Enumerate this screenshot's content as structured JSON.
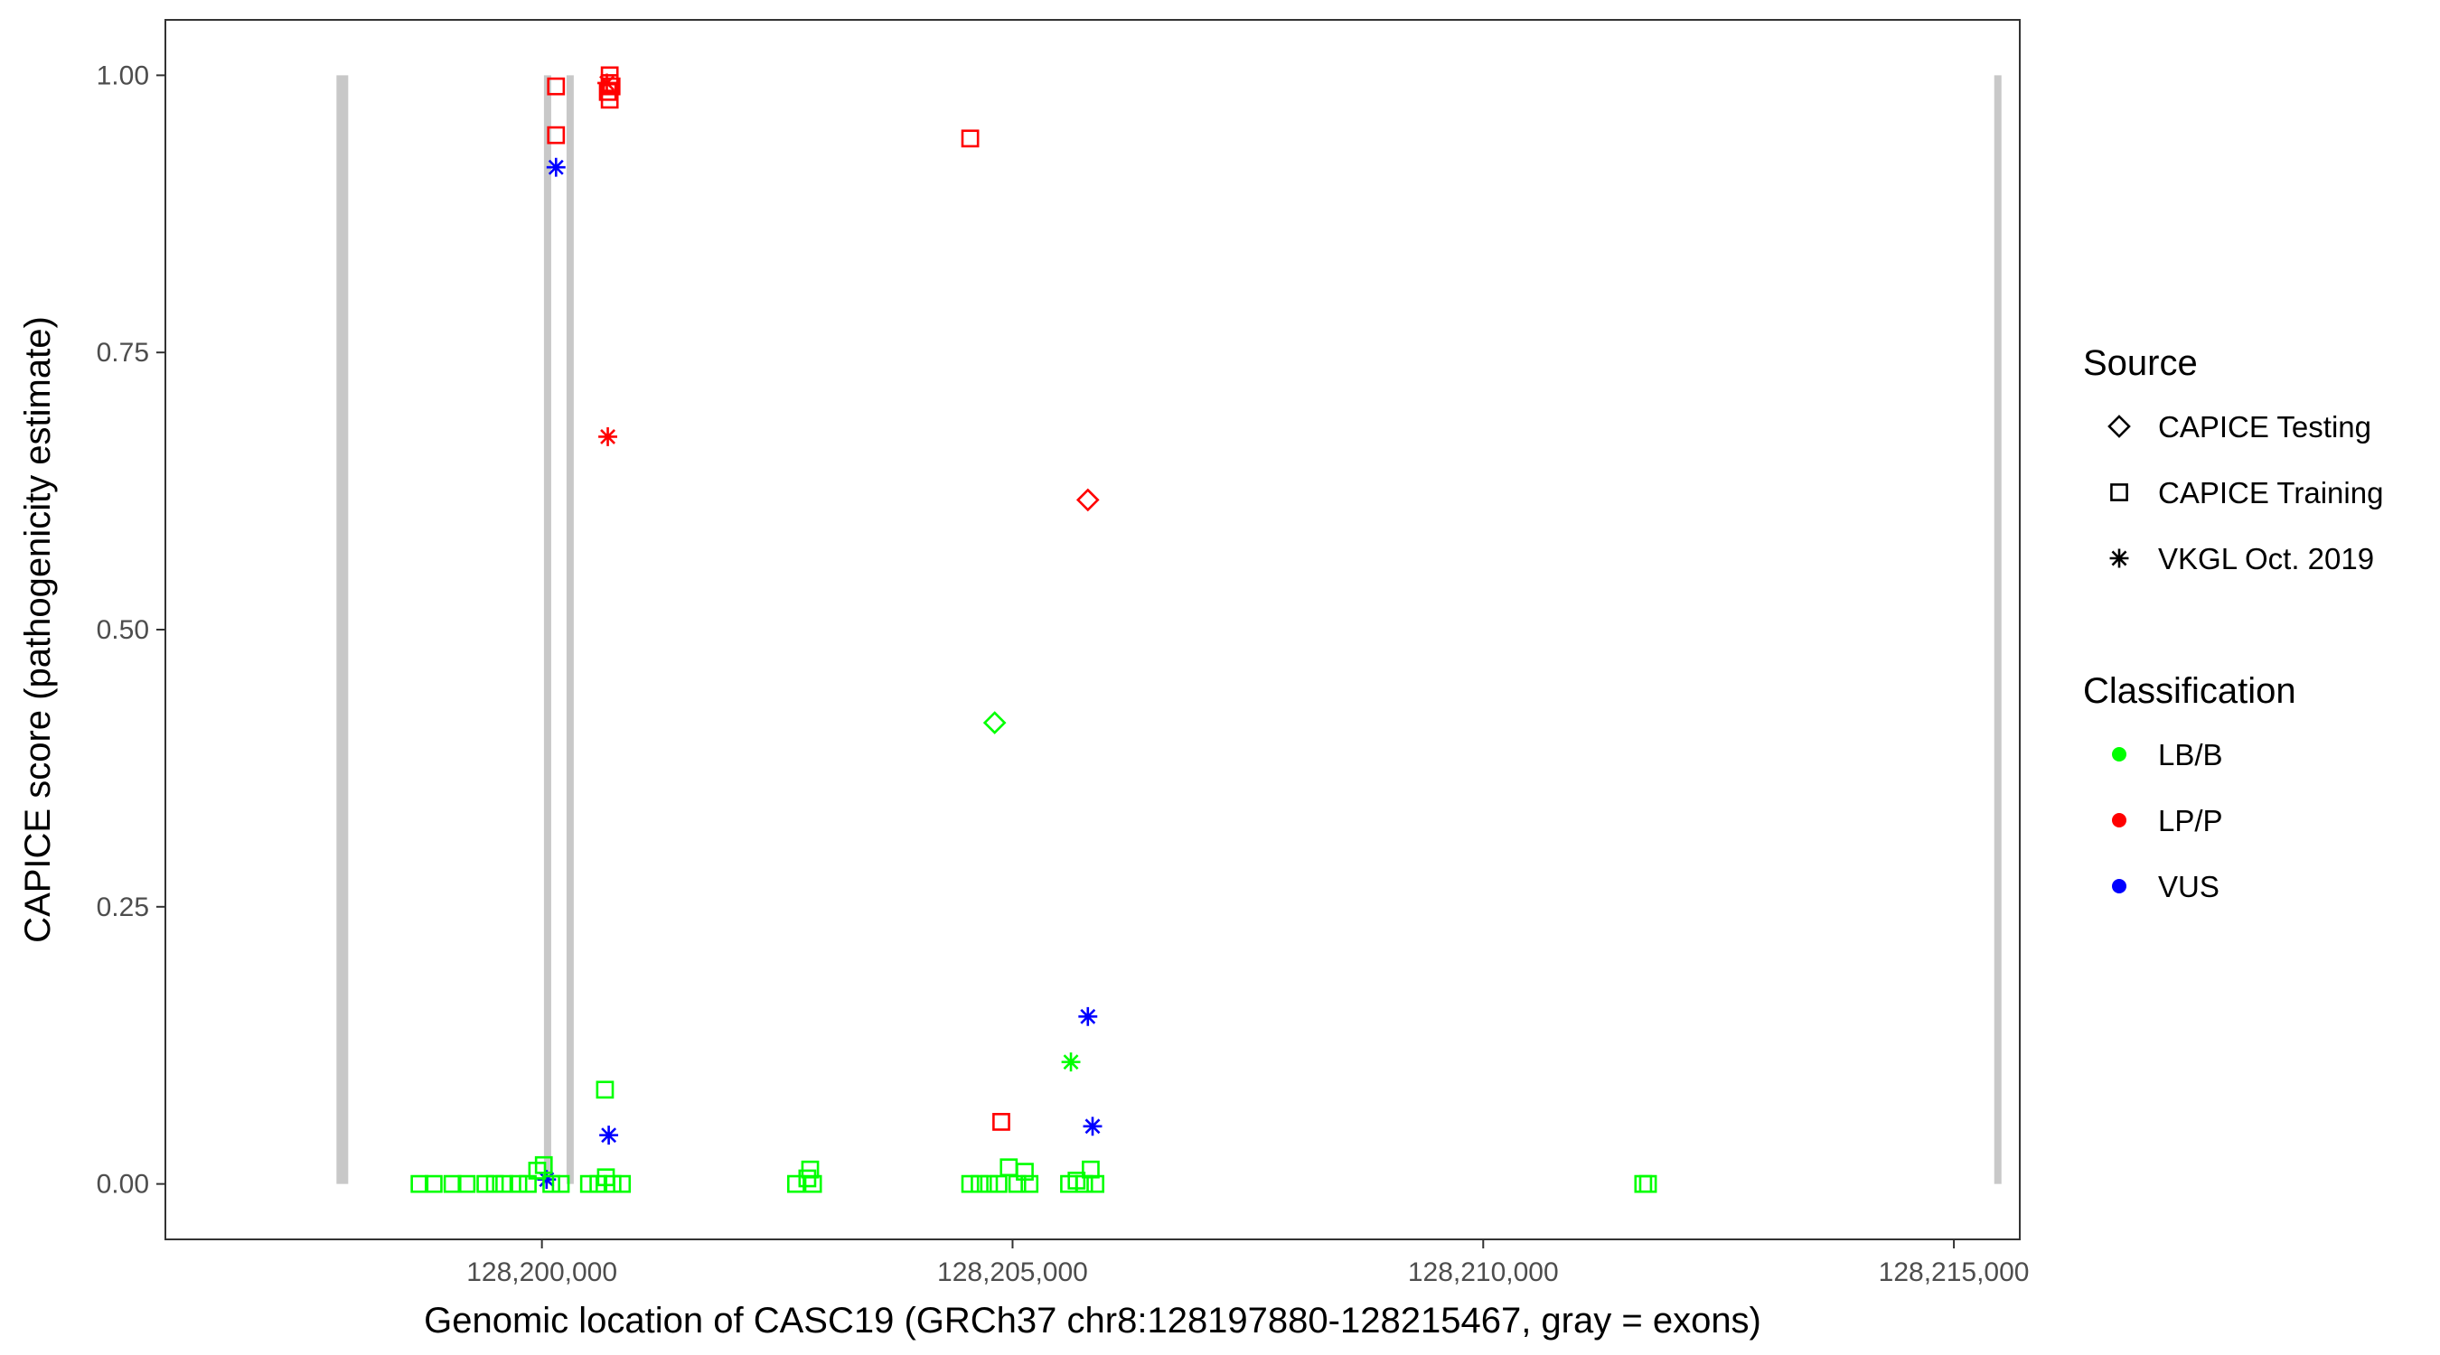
{
  "chart_data": {
    "type": "scatter",
    "xlabel": "Genomic location of CASC19 (GRCh37 chr8:128197880-128215467, gray = exons)",
    "ylabel": "CAPICE score (pathogenicity estimate)",
    "xlim": [
      128196000,
      128215700
    ],
    "ylim": [
      -0.05,
      1.05
    ],
    "x_ticks": [
      128200000,
      128205000,
      128210000,
      128215000
    ],
    "x_tick_labels": [
      "128,200,000",
      "128,205,000",
      "128,210,000",
      "128,215,000"
    ],
    "y_ticks": [
      0,
      0.25,
      0.5,
      0.75,
      1
    ],
    "y_tick_labels": [
      "0.00",
      "0.25",
      "0.50",
      "0.75",
      "1.00"
    ],
    "grid": false,
    "exons": [
      {
        "x": 128197880,
        "y": [
          0,
          1
        ]
      },
      {
        "x": 128200060,
        "y": [
          0,
          1
        ]
      },
      {
        "x": 128200300,
        "y": [
          0,
          1
        ]
      },
      {
        "x": 128215467,
        "y": [
          0,
          1
        ]
      }
    ],
    "legends": {
      "source": {
        "title": "Source",
        "entries": [
          {
            "label": "CAPICE Testing",
            "shape": "diamond"
          },
          {
            "label": "CAPICE Training",
            "shape": "square"
          },
          {
            "label": "VKGL Oct. 2019",
            "shape": "asterisk"
          }
        ]
      },
      "classification": {
        "title": "Classification",
        "entries": [
          {
            "label": "LB/B",
            "color": "#00ff00"
          },
          {
            "label": "LP/P",
            "color": "#ff0000"
          },
          {
            "label": "VUS",
            "color": "#0000ff"
          }
        ]
      }
    },
    "colors": {
      "LB/B": "#00ff00",
      "LP/P": "#ff0000",
      "VUS": "#0000ff",
      "exon": "#c8c8c8"
    },
    "points": [
      {
        "x": 128200150,
        "y": 0.99,
        "shape": "square",
        "class": "LP/P"
      },
      {
        "x": 128200150,
        "y": 0.946,
        "shape": "square",
        "class": "LP/P"
      },
      {
        "x": 128200720,
        "y": 1.0,
        "shape": "square",
        "class": "LP/P"
      },
      {
        "x": 128200720,
        "y": 0.993,
        "shape": "square",
        "class": "LP/P"
      },
      {
        "x": 128200740,
        "y": 0.99,
        "shape": "square",
        "class": "LP/P"
      },
      {
        "x": 128200700,
        "y": 0.985,
        "shape": "square",
        "class": "LP/P"
      },
      {
        "x": 128200720,
        "y": 0.978,
        "shape": "square",
        "class": "LP/P"
      },
      {
        "x": 128200690,
        "y": 0.993,
        "shape": "asterisk",
        "class": "LP/P"
      },
      {
        "x": 128200700,
        "y": 0.674,
        "shape": "asterisk",
        "class": "LP/P"
      },
      {
        "x": 128204550,
        "y": 0.943,
        "shape": "square",
        "class": "LP/P"
      },
      {
        "x": 128205800,
        "y": 0.617,
        "shape": "diamond",
        "class": "LP/P"
      },
      {
        "x": 128204880,
        "y": 0.056,
        "shape": "square",
        "class": "LP/P"
      },
      {
        "x": 128200150,
        "y": 0.917,
        "shape": "asterisk",
        "class": "VUS"
      },
      {
        "x": 128200710,
        "y": 0.044,
        "shape": "asterisk",
        "class": "VUS"
      },
      {
        "x": 128200050,
        "y": 0.004,
        "shape": "asterisk",
        "class": "VUS"
      },
      {
        "x": 128205800,
        "y": 0.151,
        "shape": "asterisk",
        "class": "VUS"
      },
      {
        "x": 128205850,
        "y": 0.052,
        "shape": "asterisk",
        "class": "VUS"
      },
      {
        "x": 128204810,
        "y": 0.416,
        "shape": "diamond",
        "class": "LB/B"
      },
      {
        "x": 128205620,
        "y": 0.11,
        "shape": "asterisk",
        "class": "LB/B"
      },
      {
        "x": 128200670,
        "y": 0.085,
        "shape": "square",
        "class": "LB/B"
      },
      {
        "x": 128198700,
        "y": 0.0,
        "shape": "square",
        "class": "LB/B"
      },
      {
        "x": 128198850,
        "y": 0.0,
        "shape": "square",
        "class": "LB/B"
      },
      {
        "x": 128199050,
        "y": 0.0,
        "shape": "square",
        "class": "LB/B"
      },
      {
        "x": 128199200,
        "y": 0.0,
        "shape": "square",
        "class": "LB/B"
      },
      {
        "x": 128199400,
        "y": 0.0,
        "shape": "square",
        "class": "LB/B"
      },
      {
        "x": 128199500,
        "y": 0.0,
        "shape": "square",
        "class": "LB/B"
      },
      {
        "x": 128199600,
        "y": 0.0,
        "shape": "square",
        "class": "LB/B"
      },
      {
        "x": 128199750,
        "y": 0.0,
        "shape": "square",
        "class": "LB/B"
      },
      {
        "x": 128199850,
        "y": 0.0,
        "shape": "square",
        "class": "LB/B"
      },
      {
        "x": 128199950,
        "y": 0.012,
        "shape": "square",
        "class": "LB/B"
      },
      {
        "x": 128200020,
        "y": 0.017,
        "shape": "square",
        "class": "LB/B"
      },
      {
        "x": 128200100,
        "y": 0.0,
        "shape": "square",
        "class": "LB/B"
      },
      {
        "x": 128200200,
        "y": 0.0,
        "shape": "square",
        "class": "LB/B"
      },
      {
        "x": 128200500,
        "y": 0.0,
        "shape": "square",
        "class": "LB/B"
      },
      {
        "x": 128200600,
        "y": 0.0,
        "shape": "square",
        "class": "LB/B"
      },
      {
        "x": 128200680,
        "y": 0.006,
        "shape": "square",
        "class": "LB/B"
      },
      {
        "x": 128200750,
        "y": 0.0,
        "shape": "square",
        "class": "LB/B"
      },
      {
        "x": 128200850,
        "y": 0.0,
        "shape": "square",
        "class": "LB/B"
      },
      {
        "x": 128202700,
        "y": 0.0,
        "shape": "square",
        "class": "LB/B"
      },
      {
        "x": 128202820,
        "y": 0.005,
        "shape": "square",
        "class": "LB/B"
      },
      {
        "x": 128202850,
        "y": 0.013,
        "shape": "square",
        "class": "LB/B"
      },
      {
        "x": 128202880,
        "y": 0.0,
        "shape": "square",
        "class": "LB/B"
      },
      {
        "x": 128204550,
        "y": 0.0,
        "shape": "square",
        "class": "LB/B"
      },
      {
        "x": 128204650,
        "y": 0.0,
        "shape": "square",
        "class": "LB/B"
      },
      {
        "x": 128204750,
        "y": 0.0,
        "shape": "square",
        "class": "LB/B"
      },
      {
        "x": 128204850,
        "y": 0.0,
        "shape": "square",
        "class": "LB/B"
      },
      {
        "x": 128204960,
        "y": 0.015,
        "shape": "square",
        "class": "LB/B"
      },
      {
        "x": 128205050,
        "y": 0.0,
        "shape": "square",
        "class": "LB/B"
      },
      {
        "x": 128205130,
        "y": 0.011,
        "shape": "square",
        "class": "LB/B"
      },
      {
        "x": 128205180,
        "y": 0.0,
        "shape": "square",
        "class": "LB/B"
      },
      {
        "x": 128205600,
        "y": 0.0,
        "shape": "square",
        "class": "LB/B"
      },
      {
        "x": 128205680,
        "y": 0.003,
        "shape": "square",
        "class": "LB/B"
      },
      {
        "x": 128205760,
        "y": 0.0,
        "shape": "square",
        "class": "LB/B"
      },
      {
        "x": 128205830,
        "y": 0.013,
        "shape": "square",
        "class": "LB/B"
      },
      {
        "x": 128205880,
        "y": 0.0,
        "shape": "square",
        "class": "LB/B"
      },
      {
        "x": 128211700,
        "y": 0.0,
        "shape": "square",
        "class": "LB/B"
      },
      {
        "x": 128211750,
        "y": 0.0,
        "shape": "square",
        "class": "LB/B"
      }
    ]
  }
}
